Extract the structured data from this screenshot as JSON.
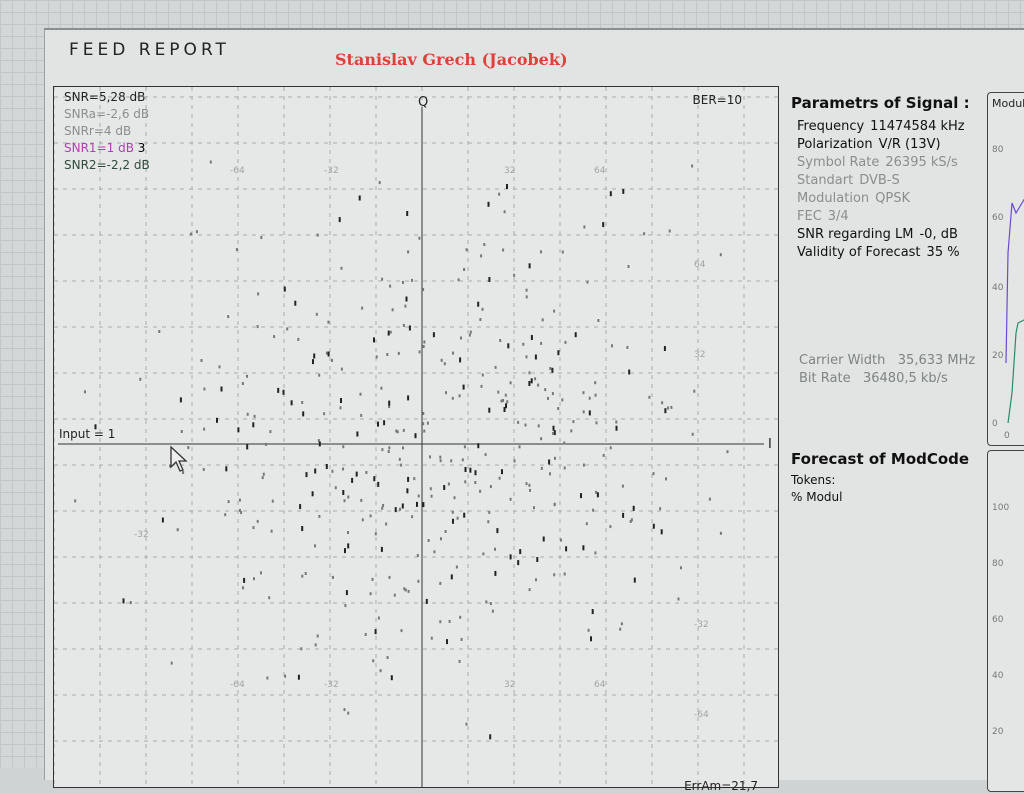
{
  "header": {
    "title": "FEED REPORT",
    "author": "Stanislav Grech (Jacobek)"
  },
  "constellation": {
    "snr": [
      {
        "text": "SNR=5,28 dB",
        "color": "#222222"
      },
      {
        "text": "SNRa=-2,6 dB",
        "color": "#8a8e8e"
      },
      {
        "text": "SNRr=4 dB",
        "color": "#8a8e8e"
      },
      {
        "text": "SNR1=1 dB",
        "suffix": "3",
        "color": "#b040b0"
      },
      {
        "text": "SNR2=-2,2 dB",
        "color": "#2e4a3a"
      }
    ],
    "ber": "BER=10",
    "q_label": "Q",
    "i_label": "I",
    "input": "Input = 1",
    "err": "ErrAm=21,7",
    "tick_labels": [
      "-64",
      "-32",
      "32",
      "64"
    ]
  },
  "params": {
    "title": "Parametrs of Signal :",
    "rows": [
      {
        "label": "Frequency",
        "value": "11474584 kHz",
        "tone": "dark"
      },
      {
        "label": "Polarization",
        "value": "V/R (13V)",
        "tone": "dark"
      },
      {
        "label": "Symbol Rate",
        "value": "26395 kS/s",
        "tone": "grey"
      },
      {
        "label": "Standart",
        "value": "DVB-S",
        "tone": "grey"
      },
      {
        "label": "Modulation",
        "value": "QPSK",
        "tone": "grey"
      },
      {
        "label": "FEC",
        "value": "3/4",
        "tone": "grey"
      },
      {
        "label": "SNR regarding LM",
        "value": "-0, dB",
        "tone": "dark"
      },
      {
        "label": "Validity of Forecast",
        "value": "35 %",
        "tone": "dark"
      }
    ],
    "carrier_width_label": "Carrier Width",
    "carrier_width": "35,633 MHz",
    "bit_rate_label": "Bit Rate",
    "bit_rate": "36480,5 kb/s"
  },
  "forecast": {
    "title": "Forecast of ModCode",
    "tokens": "Tokens:",
    "modul": "% Modul"
  },
  "mini_top": {
    "title": "Modula",
    "y_ticks": [
      "80",
      "60",
      "40",
      "20",
      "0"
    ],
    "x_tick": "0"
  },
  "mini_bottom": {
    "y_ticks": [
      "100",
      "80",
      "60",
      "40",
      "20"
    ]
  }
}
